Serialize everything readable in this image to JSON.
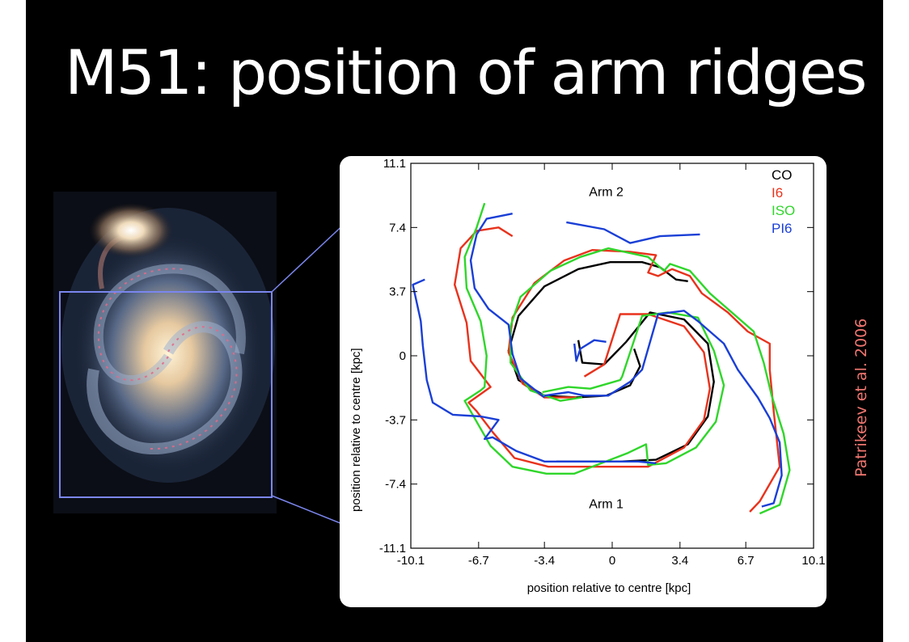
{
  "slide": {
    "title": "M51: position of arm ridges",
    "credit": "Patrikeev et al. 2006",
    "colors": {
      "background": "#000000",
      "title": "#ffffff",
      "credit": "#f07670",
      "zoom_box": "#7b86ee"
    }
  },
  "image": {
    "subject": "M51 spiral galaxy photograph with companion galaxy",
    "icon": "galaxy-photo"
  },
  "chart_data": {
    "type": "line",
    "title": "",
    "xlabel": "position relative to centre [kpc]",
    "ylabel": "position relative to centre [kpc]",
    "xlim": [
      -10.1,
      10.1
    ],
    "ylim": [
      -11.1,
      11.1
    ],
    "xticks": [
      -10.1,
      -6.7,
      -3.4,
      0,
      3.4,
      6.7,
      10.1
    ],
    "yticks": [
      11.1,
      7.4,
      3.7,
      0,
      -3.7,
      -7.4,
      -11.1
    ],
    "xtick_labels": [
      "-10.1",
      "-6.7",
      "-3.4",
      "0",
      "3.4",
      "6.7",
      "10.1"
    ],
    "ytick_labels": [
      "11.1",
      "7.4",
      "3.7",
      "0",
      "-3.7",
      "-7.4",
      "-11.1"
    ],
    "grid": false,
    "legend_position": "top-right",
    "annotations": [
      {
        "text": "Arm 2",
        "x": -0.3,
        "y": 9.2
      },
      {
        "text": "Arm 1",
        "x": -0.3,
        "y": -8.8
      }
    ],
    "series": [
      {
        "name": "CO",
        "color": "#000000",
        "arms": [
          [
            [
              1.1,
              0.4
            ],
            [
              1.4,
              -0.6
            ],
            [
              0.9,
              -1.7
            ],
            [
              -0.3,
              -2.3
            ],
            [
              -1.8,
              -2.4
            ],
            [
              -3.4,
              -2.3
            ],
            [
              -4.7,
              -1.4
            ],
            [
              -5.2,
              0.3
            ],
            [
              -4.7,
              2.3
            ],
            [
              -3.4,
              4.0
            ],
            [
              -1.7,
              5.0
            ],
            [
              -0.1,
              5.4
            ],
            [
              1.5,
              5.4
            ],
            [
              2.4,
              5.1
            ],
            [
              3.2,
              4.4
            ],
            [
              3.8,
              4.3
            ]
          ],
          [
            [
              -1.7,
              0.9
            ],
            [
              -1.5,
              -0.4
            ],
            [
              -0.4,
              -0.5
            ],
            [
              0.7,
              0.8
            ],
            [
              1.9,
              2.5
            ],
            [
              3.6,
              2.1
            ],
            [
              4.8,
              0.7
            ],
            [
              5.1,
              -1.5
            ],
            [
              4.8,
              -3.5
            ],
            [
              3.8,
              -5.1
            ],
            [
              2.2,
              -6.0
            ],
            [
              0.4,
              -6.1
            ],
            [
              -2.8,
              -6.1
            ]
          ]
        ]
      },
      {
        "name": "I6",
        "color": "#e8321c",
        "arms": [
          [
            [
              -1.8,
              -2.4
            ],
            [
              -3.4,
              -2.4
            ],
            [
              -4.5,
              -1.6
            ],
            [
              -5.2,
              0.2
            ],
            [
              -5.0,
              2.2
            ],
            [
              -3.9,
              4.2
            ],
            [
              -2.4,
              5.5
            ],
            [
              -1.0,
              6.1
            ],
            [
              0.9,
              6.0
            ],
            [
              2.2,
              5.8
            ],
            [
              1.8,
              4.8
            ],
            [
              2.3,
              4.6
            ],
            [
              3.0,
              5.0
            ],
            [
              3.9,
              4.6
            ],
            [
              4.5,
              3.6
            ],
            [
              5.8,
              2.5
            ],
            [
              6.8,
              1.4
            ],
            [
              7.9,
              0.7
            ],
            [
              7.9,
              -0.8
            ],
            [
              8.1,
              -3.2
            ],
            [
              8.4,
              -6.4
            ],
            [
              7.4,
              -8.4
            ],
            [
              6.9,
              -9.0
            ]
          ],
          [
            [
              -1.4,
              -1.2
            ],
            [
              -0.4,
              -0.5
            ],
            [
              0.4,
              2.4
            ],
            [
              1.8,
              2.4
            ],
            [
              3.6,
              1.7
            ],
            [
              4.6,
              0.2
            ],
            [
              4.9,
              -1.9
            ],
            [
              4.6,
              -3.7
            ],
            [
              3.6,
              -5.3
            ],
            [
              1.8,
              -6.4
            ],
            [
              -0.6,
              -6.4
            ],
            [
              -3.2,
              -6.4
            ],
            [
              -4.9,
              -5.9
            ],
            [
              -6.0,
              -4.4
            ],
            [
              -6.8,
              -3.2
            ],
            [
              -7.2,
              -2.7
            ],
            [
              -6.1,
              -1.8
            ],
            [
              -7.1,
              -0.3
            ],
            [
              -7.3,
              1.9
            ],
            [
              -7.9,
              4.1
            ],
            [
              -7.6,
              6.2
            ],
            [
              -6.8,
              7.2
            ],
            [
              -5.7,
              7.4
            ],
            [
              -5.0,
              6.9
            ]
          ]
        ]
      },
      {
        "name": "ISO",
        "color": "#2fd62a",
        "arms": [
          [
            [
              -1.5,
              -2.4
            ],
            [
              -2.6,
              -2.6
            ],
            [
              -4.1,
              -2.0
            ],
            [
              -5.1,
              -0.4
            ],
            [
              -5.1,
              1.7
            ],
            [
              -4.6,
              3.4
            ],
            [
              -3.1,
              4.9
            ],
            [
              -1.6,
              5.7
            ],
            [
              -0.2,
              6.2
            ],
            [
              1.8,
              5.7
            ],
            [
              2.6,
              4.9
            ],
            [
              2.9,
              5.3
            ],
            [
              3.9,
              4.9
            ],
            [
              4.9,
              3.6
            ],
            [
              5.9,
              2.6
            ],
            [
              7.1,
              1.4
            ],
            [
              7.6,
              -0.4
            ],
            [
              8.0,
              -2.3
            ],
            [
              8.6,
              -4.5
            ],
            [
              8.9,
              -6.6
            ],
            [
              8.4,
              -8.6
            ],
            [
              7.4,
              -9.1
            ]
          ],
          [
            [
              -3.5,
              -2.1
            ],
            [
              -2.2,
              -1.8
            ],
            [
              -1.1,
              -1.9
            ],
            [
              0.4,
              -1.4
            ],
            [
              0.5,
              -1.2
            ],
            [
              1.5,
              2.3
            ],
            [
              2.8,
              2.5
            ],
            [
              4.3,
              2.2
            ],
            [
              5.1,
              0.3
            ],
            [
              5.6,
              -1.7
            ],
            [
              5.2,
              -3.8
            ],
            [
              4.2,
              -5.3
            ],
            [
              2.7,
              -6.2
            ],
            [
              1.8,
              -6.3
            ],
            [
              1.7,
              -5.1
            ],
            [
              0.8,
              -5.6
            ],
            [
              -1.9,
              -6.8
            ],
            [
              -3.3,
              -6.8
            ],
            [
              -5.0,
              -6.4
            ],
            [
              -6.1,
              -5.2
            ],
            [
              -6.7,
              -4.0
            ],
            [
              -7.4,
              -2.6
            ],
            [
              -6.6,
              -2.0
            ],
            [
              -6.4,
              -1.8
            ],
            [
              -6.3,
              0.0
            ],
            [
              -6.6,
              2.0
            ],
            [
              -7.3,
              3.9
            ],
            [
              -7.4,
              5.7
            ],
            [
              -6.8,
              7.4
            ],
            [
              -6.4,
              8.8
            ]
          ]
        ]
      },
      {
        "name": "PI6",
        "color": "#1a3fd6",
        "arms": [
          [
            [
              -3.4,
              -2.4
            ],
            [
              -4.6,
              -1.3
            ],
            [
              -5.0,
              0.1
            ],
            [
              -5.2,
              1.8
            ],
            [
              -6.2,
              2.7
            ],
            [
              -6.9,
              3.9
            ],
            [
              -7.1,
              5.5
            ],
            [
              -6.8,
              7.0
            ],
            [
              -6.3,
              7.9
            ],
            [
              -5.0,
              8.2
            ]
          ],
          [
            [
              -2.3,
              7.7
            ],
            [
              -0.4,
              7.3
            ],
            [
              0.9,
              6.5
            ],
            [
              2.4,
              6.9
            ],
            [
              4.4,
              7.0
            ]
          ],
          [
            [
              -1.9,
              0.7
            ],
            [
              -1.8,
              -0.3
            ],
            [
              -1.6,
              0.4
            ],
            [
              -0.9,
              0.9
            ],
            [
              -0.3,
              0.8
            ]
          ],
          [
            [
              -3.4,
              -2.3
            ],
            [
              -2.2,
              -2.1
            ],
            [
              -1.4,
              -2.3
            ],
            [
              -0.2,
              -2.3
            ],
            [
              0.9,
              -1.5
            ],
            [
              1.5,
              -0.8
            ],
            [
              2.3,
              2.4
            ],
            [
              3.6,
              2.6
            ],
            [
              4.3,
              2.0
            ],
            [
              5.6,
              0.7
            ],
            [
              6.3,
              -0.8
            ],
            [
              7.3,
              -2.4
            ],
            [
              7.9,
              -3.6
            ],
            [
              8.4,
              -5.0
            ],
            [
              8.5,
              -6.9
            ],
            [
              8.1,
              -8.5
            ],
            [
              7.5,
              -8.7
            ]
          ],
          [
            [
              -9.4,
              4.4
            ],
            [
              -10.0,
              4.1
            ],
            [
              -9.6,
              2.0
            ],
            [
              -9.5,
              0.6
            ],
            [
              -9.3,
              -1.4
            ],
            [
              -9.0,
              -2.7
            ],
            [
              -8.0,
              -3.4
            ],
            [
              -6.6,
              -3.5
            ],
            [
              -5.7,
              -3.7
            ],
            [
              -6.4,
              -4.8
            ],
            [
              -6.0,
              -4.7
            ],
            [
              -4.8,
              -5.5
            ],
            [
              -3.4,
              -6.1
            ],
            [
              -1.0,
              -6.1
            ],
            [
              1.3,
              -6.1
            ],
            [
              2.2,
              -6.2
            ]
          ]
        ]
      }
    ]
  }
}
